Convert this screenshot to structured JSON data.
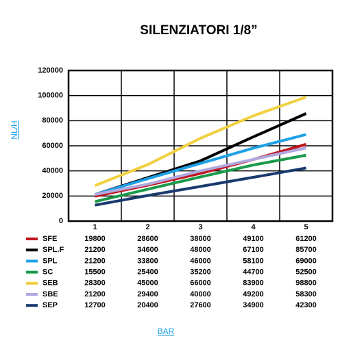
{
  "chart_data": {
    "type": "line",
    "title": "SILENZIATORI 1/8”",
    "xlabel": "BAR",
    "ylabel": "NL/H",
    "categories": [
      "1",
      "2",
      "3",
      "4",
      "5"
    ],
    "ylim": [
      0,
      120000
    ],
    "yticks": [
      0,
      20000,
      40000,
      60000,
      80000,
      100000,
      120000
    ],
    "grid": true,
    "series": [
      {
        "name": "SFE",
        "color": "#c0141c",
        "values": [
          19800,
          28600,
          38000,
          49100,
          61200
        ]
      },
      {
        "name": "SPL.F",
        "color": "#000000",
        "values": [
          21200,
          34600,
          48000,
          67100,
          85700
        ]
      },
      {
        "name": "SPL",
        "color": "#1ea0e6",
        "values": [
          21200,
          33800,
          46000,
          58100,
          69000
        ]
      },
      {
        "name": "SC",
        "color": "#1a9a4a",
        "values": [
          15500,
          25400,
          35200,
          44700,
          52500
        ]
      },
      {
        "name": "SEB",
        "color": "#f0d040",
        "values": [
          28300,
          45000,
          66000,
          83900,
          98800
        ]
      },
      {
        "name": "SBE",
        "color": "#b0a8e0",
        "values": [
          21200,
          29400,
          40000,
          49200,
          58300
        ]
      },
      {
        "name": "SEP",
        "color": "#1a3a6e",
        "values": [
          12700,
          20400,
          27600,
          34900,
          42300
        ]
      }
    ]
  }
}
